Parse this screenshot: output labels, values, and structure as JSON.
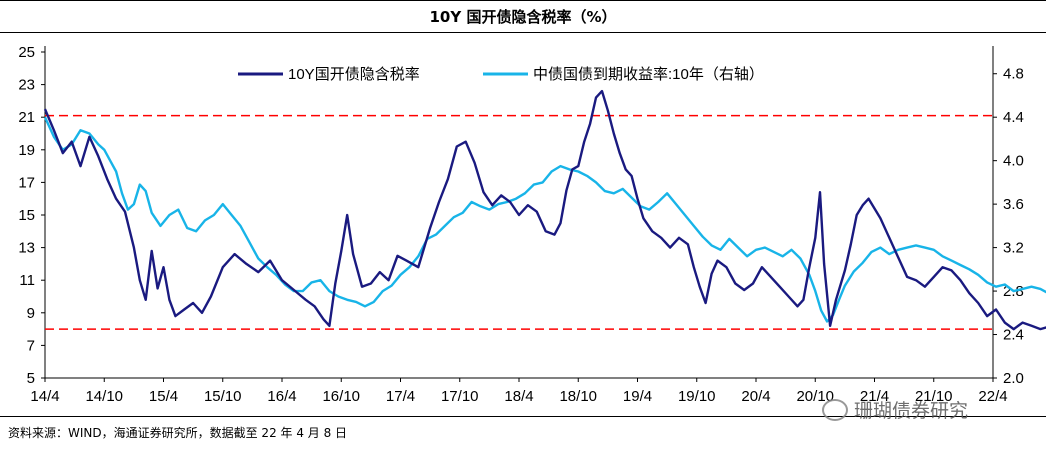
{
  "header": {
    "title": "10Y 国开债隐含税率（%）"
  },
  "footer": {
    "source": "资料来源：WIND，海通证券研究所，数据截至 22 年 4 月 8 日"
  },
  "watermark": {
    "text": "珊瑚债券研究",
    "icon": "wechat-icon"
  },
  "chart_data": {
    "type": "line",
    "title": "10Y 国开债隐含税率（%）",
    "x_ticks": [
      "14/4",
      "14/10",
      "15/4",
      "15/10",
      "16/4",
      "16/10",
      "17/4",
      "17/10",
      "18/4",
      "18/10",
      "19/4",
      "19/10",
      "20/4",
      "20/10",
      "21/4",
      "21/10",
      "22/4"
    ],
    "y_left": {
      "ticks": [
        "5",
        "7",
        "9",
        "11",
        "13",
        "15",
        "17",
        "19",
        "21",
        "23",
        "25"
      ],
      "lim": [
        5,
        25
      ]
    },
    "y_right": {
      "ticks": [
        "2.0",
        "2.4",
        "2.8",
        "3.2",
        "3.6",
        "4.0",
        "4.4",
        "4.8"
      ],
      "lim": [
        2.0,
        5.0
      ]
    },
    "legend": {
      "placement": "top-center"
    },
    "grid": false,
    "reference_lines": [
      {
        "axis": "left",
        "value": 21.1,
        "style": "dashed",
        "color": "#ff0000"
      },
      {
        "axis": "left",
        "value": 8.0,
        "style": "dashed",
        "color": "#ff0000"
      }
    ],
    "series": [
      {
        "name": "10Y国开债隐含税率",
        "axis": "left",
        "color": "#1a1a80",
        "points": [
          [
            0,
            21.5
          ],
          [
            0.15,
            20.2
          ],
          [
            0.3,
            18.8
          ],
          [
            0.45,
            19.5
          ],
          [
            0.6,
            18.0
          ],
          [
            0.75,
            19.8
          ],
          [
            0.9,
            18.6
          ],
          [
            1.05,
            17.2
          ],
          [
            1.2,
            16.0
          ],
          [
            1.35,
            15.2
          ],
          [
            1.5,
            13.0
          ],
          [
            1.6,
            11.0
          ],
          [
            1.7,
            9.8
          ],
          [
            1.8,
            12.8
          ],
          [
            1.9,
            10.5
          ],
          [
            2.0,
            11.8
          ],
          [
            2.1,
            9.8
          ],
          [
            2.2,
            8.8
          ],
          [
            2.35,
            9.2
          ],
          [
            2.5,
            9.6
          ],
          [
            2.65,
            9.0
          ],
          [
            2.8,
            10.0
          ],
          [
            3.0,
            11.8
          ],
          [
            3.2,
            12.6
          ],
          [
            3.4,
            12.0
          ],
          [
            3.6,
            11.5
          ],
          [
            3.8,
            12.2
          ],
          [
            4.0,
            11.0
          ],
          [
            4.2,
            10.4
          ],
          [
            4.4,
            9.8
          ],
          [
            4.55,
            9.4
          ],
          [
            4.7,
            8.6
          ],
          [
            4.8,
            8.2
          ],
          [
            4.9,
            10.8
          ],
          [
            5.0,
            12.8
          ],
          [
            5.1,
            15.0
          ],
          [
            5.2,
            12.6
          ],
          [
            5.35,
            10.6
          ],
          [
            5.5,
            10.8
          ],
          [
            5.65,
            11.5
          ],
          [
            5.8,
            11.0
          ],
          [
            5.95,
            12.5
          ],
          [
            6.1,
            12.2
          ],
          [
            6.3,
            11.8
          ],
          [
            6.5,
            14.2
          ],
          [
            6.65,
            15.8
          ],
          [
            6.8,
            17.2
          ],
          [
            6.95,
            19.2
          ],
          [
            7.1,
            19.5
          ],
          [
            7.25,
            18.2
          ],
          [
            7.4,
            16.4
          ],
          [
            7.55,
            15.6
          ],
          [
            7.7,
            16.2
          ],
          [
            7.85,
            15.8
          ],
          [
            8.0,
            15.0
          ],
          [
            8.15,
            15.6
          ],
          [
            8.3,
            15.2
          ],
          [
            8.45,
            14.0
          ],
          [
            8.6,
            13.8
          ],
          [
            8.7,
            14.5
          ],
          [
            8.8,
            16.5
          ],
          [
            8.9,
            17.8
          ],
          [
            9.0,
            18.0
          ],
          [
            9.1,
            19.5
          ],
          [
            9.2,
            20.6
          ],
          [
            9.3,
            22.2
          ],
          [
            9.4,
            22.6
          ],
          [
            9.5,
            21.4
          ],
          [
            9.6,
            20.0
          ],
          [
            9.7,
            18.8
          ],
          [
            9.8,
            17.8
          ],
          [
            9.9,
            17.4
          ],
          [
            10.0,
            16.0
          ],
          [
            10.1,
            14.8
          ],
          [
            10.25,
            14.0
          ],
          [
            10.4,
            13.6
          ],
          [
            10.55,
            13.0
          ],
          [
            10.7,
            13.6
          ],
          [
            10.85,
            13.2
          ],
          [
            10.95,
            11.8
          ],
          [
            11.05,
            10.6
          ],
          [
            11.15,
            9.6
          ],
          [
            11.25,
            11.4
          ],
          [
            11.35,
            12.2
          ],
          [
            11.5,
            11.8
          ],
          [
            11.65,
            10.8
          ],
          [
            11.8,
            10.4
          ],
          [
            11.95,
            10.8
          ],
          [
            12.1,
            11.8
          ],
          [
            12.25,
            11.2
          ],
          [
            12.4,
            10.6
          ],
          [
            12.55,
            10.0
          ],
          [
            12.7,
            9.4
          ],
          [
            12.8,
            9.8
          ],
          [
            12.9,
            11.8
          ],
          [
            13.0,
            13.6
          ],
          [
            13.08,
            16.4
          ],
          [
            13.15,
            12.0
          ],
          [
            13.25,
            8.2
          ],
          [
            13.35,
            9.8
          ],
          [
            13.5,
            11.6
          ],
          [
            13.6,
            13.2
          ],
          [
            13.7,
            15.0
          ],
          [
            13.8,
            15.6
          ],
          [
            13.9,
            16.0
          ],
          [
            14.0,
            15.4
          ],
          [
            14.1,
            14.8
          ],
          [
            14.25,
            13.6
          ],
          [
            14.4,
            12.4
          ],
          [
            14.55,
            11.2
          ],
          [
            14.7,
            11.0
          ],
          [
            14.85,
            10.6
          ],
          [
            15.0,
            11.2
          ],
          [
            15.15,
            11.8
          ],
          [
            15.3,
            11.6
          ],
          [
            15.45,
            11.0
          ],
          [
            15.6,
            10.2
          ],
          [
            15.75,
            9.6
          ],
          [
            15.9,
            8.8
          ],
          [
            16.05,
            9.2
          ],
          [
            16.2,
            8.4
          ],
          [
            16.35,
            8.0
          ],
          [
            16.5,
            8.4
          ],
          [
            16.65,
            8.2
          ],
          [
            16.8,
            8.0
          ],
          [
            17.0,
            8.2
          ]
        ]
      },
      {
        "name": "中债国债到期收益率:10年（右轴）",
        "axis": "right",
        "color": "#18b4e8",
        "points": [
          [
            0,
            4.4
          ],
          [
            0.15,
            4.22
          ],
          [
            0.3,
            4.1
          ],
          [
            0.45,
            4.15
          ],
          [
            0.6,
            4.28
          ],
          [
            0.75,
            4.25
          ],
          [
            0.9,
            4.15
          ],
          [
            1.0,
            4.1
          ],
          [
            1.1,
            4.0
          ],
          [
            1.2,
            3.9
          ],
          [
            1.3,
            3.7
          ],
          [
            1.4,
            3.55
          ],
          [
            1.5,
            3.6
          ],
          [
            1.6,
            3.78
          ],
          [
            1.7,
            3.72
          ],
          [
            1.8,
            3.52
          ],
          [
            1.95,
            3.4
          ],
          [
            2.1,
            3.5
          ],
          [
            2.25,
            3.55
          ],
          [
            2.4,
            3.38
          ],
          [
            2.55,
            3.35
          ],
          [
            2.7,
            3.45
          ],
          [
            2.85,
            3.5
          ],
          [
            3.0,
            3.6
          ],
          [
            3.15,
            3.5
          ],
          [
            3.3,
            3.4
          ],
          [
            3.45,
            3.25
          ],
          [
            3.6,
            3.1
          ],
          [
            3.75,
            3.02
          ],
          [
            3.9,
            2.95
          ],
          [
            4.05,
            2.86
          ],
          [
            4.2,
            2.8
          ],
          [
            4.35,
            2.8
          ],
          [
            4.5,
            2.88
          ],
          [
            4.65,
            2.9
          ],
          [
            4.8,
            2.8
          ],
          [
            4.95,
            2.75
          ],
          [
            5.1,
            2.72
          ],
          [
            5.25,
            2.7
          ],
          [
            5.4,
            2.66
          ],
          [
            5.55,
            2.7
          ],
          [
            5.7,
            2.8
          ],
          [
            5.85,
            2.85
          ],
          [
            6.0,
            2.95
          ],
          [
            6.15,
            3.02
          ],
          [
            6.3,
            3.12
          ],
          [
            6.45,
            3.28
          ],
          [
            6.6,
            3.32
          ],
          [
            6.75,
            3.4
          ],
          [
            6.9,
            3.48
          ],
          [
            7.05,
            3.52
          ],
          [
            7.2,
            3.62
          ],
          [
            7.35,
            3.58
          ],
          [
            7.5,
            3.55
          ],
          [
            7.65,
            3.6
          ],
          [
            7.8,
            3.62
          ],
          [
            7.95,
            3.65
          ],
          [
            8.1,
            3.7
          ],
          [
            8.25,
            3.78
          ],
          [
            8.4,
            3.8
          ],
          [
            8.55,
            3.9
          ],
          [
            8.7,
            3.95
          ],
          [
            8.85,
            3.92
          ],
          [
            9.0,
            3.9
          ],
          [
            9.15,
            3.86
          ],
          [
            9.3,
            3.8
          ],
          [
            9.45,
            3.72
          ],
          [
            9.6,
            3.7
          ],
          [
            9.75,
            3.74
          ],
          [
            9.9,
            3.66
          ],
          [
            10.05,
            3.58
          ],
          [
            10.2,
            3.55
          ],
          [
            10.35,
            3.62
          ],
          [
            10.5,
            3.7
          ],
          [
            10.65,
            3.6
          ],
          [
            10.8,
            3.5
          ],
          [
            10.95,
            3.4
          ],
          [
            11.1,
            3.3
          ],
          [
            11.25,
            3.22
          ],
          [
            11.4,
            3.18
          ],
          [
            11.55,
            3.28
          ],
          [
            11.7,
            3.2
          ],
          [
            11.85,
            3.12
          ],
          [
            12.0,
            3.18
          ],
          [
            12.15,
            3.2
          ],
          [
            12.3,
            3.16
          ],
          [
            12.45,
            3.12
          ],
          [
            12.6,
            3.18
          ],
          [
            12.75,
            3.1
          ],
          [
            12.9,
            2.95
          ],
          [
            13.0,
            2.8
          ],
          [
            13.1,
            2.62
          ],
          [
            13.2,
            2.52
          ],
          [
            13.3,
            2.58
          ],
          [
            13.4,
            2.72
          ],
          [
            13.5,
            2.85
          ],
          [
            13.65,
            2.98
          ],
          [
            13.8,
            3.06
          ],
          [
            13.95,
            3.16
          ],
          [
            14.1,
            3.2
          ],
          [
            14.25,
            3.14
          ],
          [
            14.4,
            3.18
          ],
          [
            14.55,
            3.2
          ],
          [
            14.7,
            3.22
          ],
          [
            14.85,
            3.2
          ],
          [
            15.0,
            3.18
          ],
          [
            15.15,
            3.12
          ],
          [
            15.3,
            3.08
          ],
          [
            15.45,
            3.04
          ],
          [
            15.6,
            3.0
          ],
          [
            15.75,
            2.95
          ],
          [
            15.9,
            2.88
          ],
          [
            16.05,
            2.84
          ],
          [
            16.2,
            2.86
          ],
          [
            16.35,
            2.8
          ],
          [
            16.5,
            2.82
          ],
          [
            16.65,
            2.84
          ],
          [
            16.8,
            2.82
          ],
          [
            17.0,
            2.76
          ]
        ]
      }
    ]
  }
}
